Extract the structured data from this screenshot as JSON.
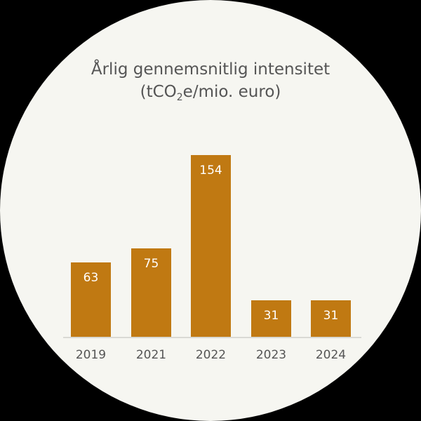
{
  "chart_data": {
    "type": "bar",
    "title": "Årlig gennemsnitlig intensitet",
    "subtitle_parts": [
      "(tCO",
      "2",
      "e/mio. euro)"
    ],
    "categories": [
      "2019",
      "2021",
      "2022",
      "2023",
      "2024"
    ],
    "values": [
      63,
      75,
      154,
      31,
      31
    ],
    "xlabel": "",
    "ylabel": "",
    "bar_color": "#c07912",
    "grid": false,
    "legend": "none",
    "data_labels": true
  }
}
